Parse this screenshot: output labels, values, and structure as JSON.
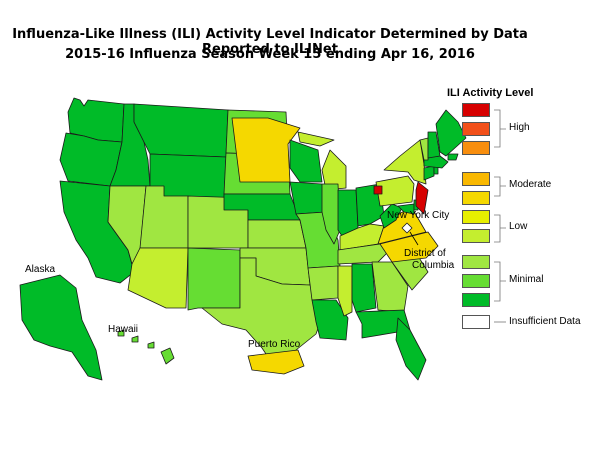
{
  "title": {
    "line1": "Influenza-Like Illness (ILI) Activity Level Indicator Determined by Data Reported to ILINet",
    "line2": "2015-16  Influenza Season Week  15 ending Apr 16, 2016"
  },
  "labels": {
    "alaska": "Alaska",
    "hawaii": "Hawaii",
    "puerto_rico": "Puerto Rico",
    "new_york_city": "New York City",
    "dc_line1": "District of",
    "dc_line2": "Columbia"
  },
  "legend": {
    "title": "ILI Activity Level",
    "groups": [
      "High",
      "Moderate",
      "Low",
      "Minimal",
      "Insufficient Data"
    ],
    "levels": [
      {
        "level": 10,
        "color": "#d60000"
      },
      {
        "level": 9,
        "color": "#f2501a"
      },
      {
        "level": 8,
        "color": "#f88e0e"
      },
      {
        "level": 7,
        "color": "#f9b800"
      },
      {
        "level": 6,
        "color": "#f5d800"
      },
      {
        "level": 5,
        "color": "#e7ef00"
      },
      {
        "level": 4,
        "color": "#c4ee2f"
      },
      {
        "level": 3,
        "color": "#a0e641"
      },
      {
        "level": 2,
        "color": "#66dd33"
      },
      {
        "level": 1,
        "color": "#00bb28"
      },
      {
        "level": 0,
        "color": "#ffffff"
      }
    ]
  }
}
